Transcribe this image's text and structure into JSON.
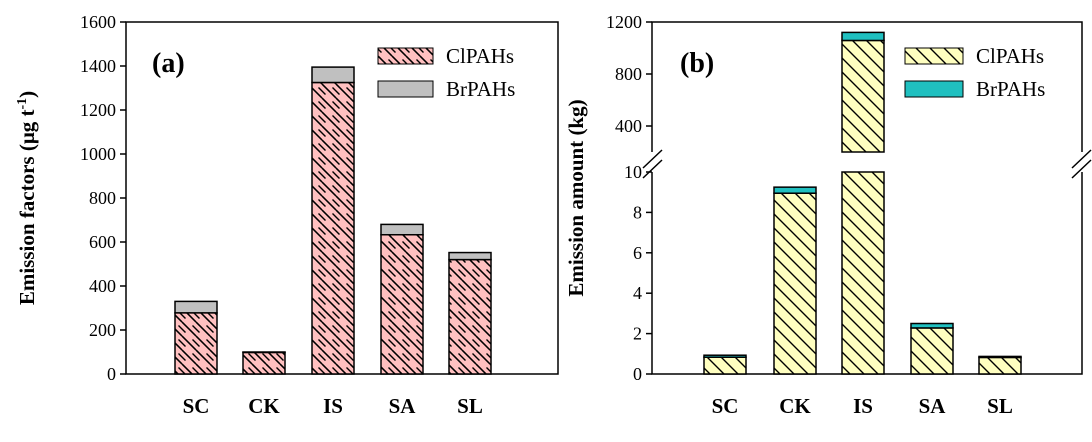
{
  "colors": {
    "clpahs_a": "#ffc0c0",
    "brpahs_a": "#c0c0c0",
    "clpahs_b": "#ffffc0",
    "brpahs_b": "#20c0c0"
  },
  "chart_data": [
    {
      "type": "bar",
      "stacked": true,
      "panel_label": "(a)",
      "ylabel": "Emission factors (μg t",
      "ylabel_sup": "-1",
      "ylabel_close": ")",
      "categories": [
        "SC",
        "CK",
        "IS",
        "SA",
        "SL"
      ],
      "series": [
        {
          "name": "ClPAHs",
          "values": [
            278,
            98,
            1325,
            633,
            520
          ]
        },
        {
          "name": "BrPAHs",
          "values": [
            52,
            2,
            70,
            47,
            32
          ]
        }
      ],
      "ylim": [
        0,
        1600
      ],
      "yticks": [
        "0",
        "200",
        "400",
        "600",
        "800",
        "1000",
        "1200",
        "1400",
        "1600"
      ],
      "legend": "top-right"
    },
    {
      "type": "bar",
      "stacked": true,
      "broken_axis": true,
      "panel_label": "(b)",
      "ylabel": "Emission amount (kg)",
      "categories": [
        "SC",
        "CK",
        "IS",
        "SA",
        "SL"
      ],
      "series": [
        {
          "name": "ClPAHs",
          "values": [
            0.83,
            8.95,
            1058,
            2.28,
            0.82
          ]
        },
        {
          "name": "BrPAHs",
          "values": [
            0.1,
            0.3,
            62,
            0.22,
            0.05
          ]
        }
      ],
      "ylim_lower": [
        0,
        10
      ],
      "ylim_upper": [
        200,
        1200
      ],
      "yticks_lower": [
        "0",
        "2",
        "4",
        "6",
        "8",
        "10"
      ],
      "yticks_upper": [
        "400",
        "800",
        "1200"
      ],
      "legend": "top-right"
    }
  ]
}
